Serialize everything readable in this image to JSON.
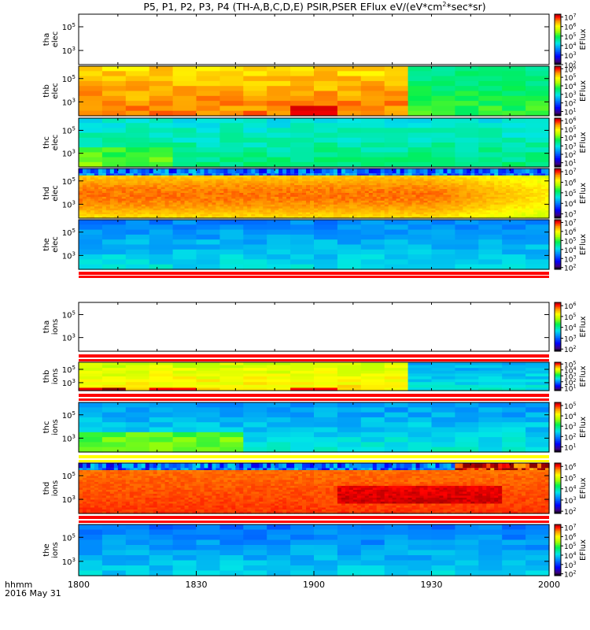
{
  "title": "P5, P1, P2, P3, P4 (TH-A,B,C,D,E) PSIR,PSER EFlux eV/(eV*cm^2*sec*sr)",
  "title_parts": {
    "before": "P5, P1, P2, P3, P4 (TH-A,B,C,D,E) PSIR,PSER EFlux eV/(eV*cm",
    "sup": "2",
    "after": "*sec*sr)"
  },
  "footer": {
    "time_label": "hhmm",
    "date_label": "2016 May 31"
  },
  "colorbar_label": "EFlux",
  "chart_data": {
    "type": "heatmap",
    "x": {
      "ticks": [
        "1800",
        "1830",
        "1900",
        "1930",
        "2000"
      ],
      "range_minutes": [
        0,
        120
      ]
    },
    "y_scale": "log",
    "panels": [
      {
        "probe": "tha",
        "species": "elec",
        "empty": true,
        "yticks": [
          "10^5",
          "10^3"
        ],
        "cbar": [
          "10^7",
          "10^6",
          "10^5",
          "10^4",
          "10^3",
          "10^2"
        ],
        "cbar_range": [
          2,
          7.3
        ]
      },
      {
        "probe": "thb",
        "species": "elec",
        "empty": false,
        "yticks": [
          "10^5",
          "10^3"
        ],
        "cbar": [
          "10^6",
          "10^5",
          "10^4",
          "10^3",
          "10^2",
          "10^1"
        ],
        "cbar_range": [
          0.5,
          6.3
        ]
      },
      {
        "probe": "thc",
        "species": "elec",
        "empty": false,
        "yticks": [
          "10^5",
          "10^3"
        ],
        "cbar": [
          "10^6",
          "10^5",
          "10^4",
          "10^3",
          "10^2",
          "10^1"
        ],
        "cbar_range": [
          0.5,
          6.3
        ]
      },
      {
        "probe": "thd",
        "species": "elec",
        "empty": false,
        "yticks": [
          "10^5",
          "10^3"
        ],
        "cbar": [
          "10^7",
          "10^6",
          "10^5",
          "10^4",
          "10^3"
        ],
        "cbar_range": [
          2.6,
          7.3
        ]
      },
      {
        "probe": "the",
        "species": "elec",
        "empty": false,
        "yticks": [
          "10^5",
          "10^3"
        ],
        "cbar": [
          "10^7",
          "10^6",
          "10^5",
          "10^4",
          "10^3",
          "10^2"
        ],
        "cbar_range": [
          1.8,
          7.3
        ]
      },
      {
        "probe": "tha",
        "species": "ions",
        "empty": true,
        "yticks": [
          "10^5",
          "10^3"
        ],
        "cbar": [
          "10^6",
          "10^5",
          "10^4",
          "10^3",
          "10^2"
        ],
        "cbar_range": [
          1.8,
          6.3
        ]
      },
      {
        "probe": "thb",
        "species": "ions",
        "empty": false,
        "yticks": [
          "10^5",
          "10^3"
        ],
        "cbar": [
          "10^5",
          "10^4",
          "10^3",
          "10^2",
          "10^1"
        ],
        "cbar_range": [
          0.5,
          5.3
        ]
      },
      {
        "probe": "thc",
        "species": "ions",
        "empty": false,
        "yticks": [
          "10^5",
          "10^3"
        ],
        "cbar": [
          "10^5",
          "10^4",
          "10^3",
          "10^2",
          "10^1"
        ],
        "cbar_range": [
          0.5,
          5.3
        ]
      },
      {
        "probe": "thd",
        "species": "ions",
        "empty": false,
        "yticks": [
          "10^5",
          "10^3"
        ],
        "cbar": [
          "10^6",
          "10^5",
          "10^4",
          "10^3",
          "10^2"
        ],
        "cbar_range": [
          1.8,
          6.3
        ]
      },
      {
        "probe": "the",
        "species": "ions",
        "empty": false,
        "yticks": [
          "10^5",
          "10^3"
        ],
        "cbar": [
          "10^7",
          "10^6",
          "10^5",
          "10^4",
          "10^3",
          "10^2"
        ],
        "cbar_range": [
          1.8,
          7.3
        ]
      }
    ]
  }
}
